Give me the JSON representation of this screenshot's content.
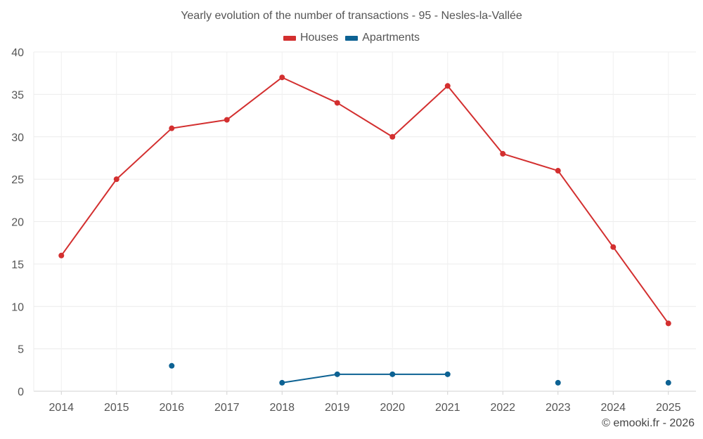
{
  "chart_data": {
    "type": "line",
    "title": "Yearly evolution of the number of transactions - 95 - Nesles-la-Vallée",
    "xlabel": "",
    "ylabel": "",
    "ylim": [
      0,
      40
    ],
    "yticks": [
      0,
      5,
      10,
      15,
      20,
      25,
      30,
      35,
      40
    ],
    "categories": [
      "2014",
      "2015",
      "2016",
      "2017",
      "2018",
      "2019",
      "2020",
      "2021",
      "2022",
      "2023",
      "2024",
      "2025"
    ],
    "grid": true,
    "legend_position": "top-center",
    "series": [
      {
        "name": "Houses",
        "color": "#d32f2f",
        "values": [
          16,
          25,
          31,
          32,
          37,
          34,
          30,
          36,
          28,
          26,
          17,
          8
        ]
      },
      {
        "name": "Apartments",
        "color": "#0d6293",
        "values": [
          null,
          null,
          3,
          null,
          1,
          2,
          2,
          2,
          null,
          1,
          null,
          1
        ]
      }
    ]
  },
  "credit": "© emooki.fr - 2026"
}
